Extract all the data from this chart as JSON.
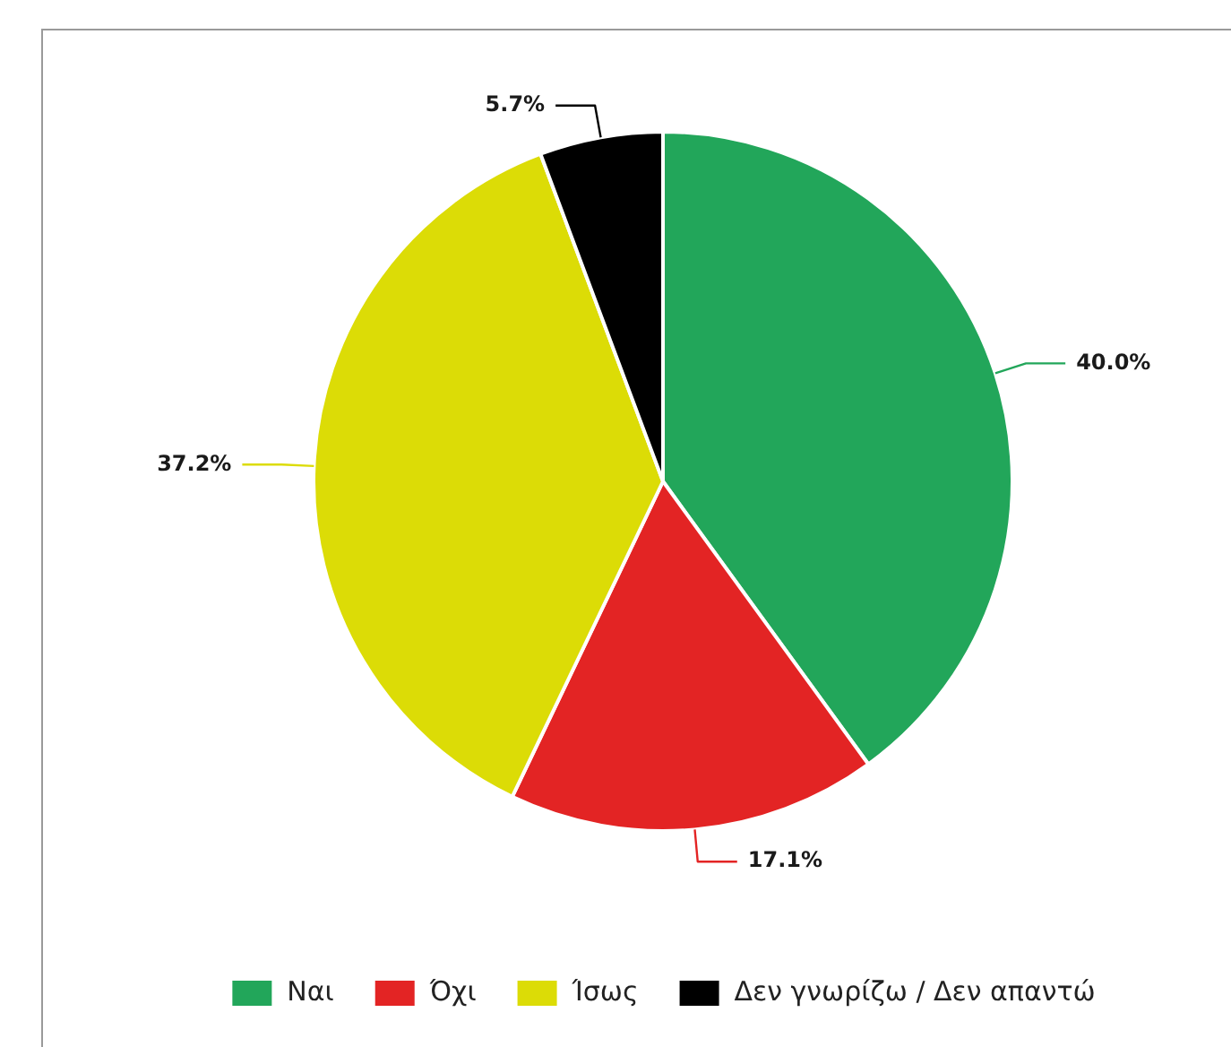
{
  "chart_data": {
    "type": "pie",
    "categories": [
      "Ναι",
      "Όχι",
      "Ίσως",
      "Δεν γνωρίζω / Δεν απαντώ"
    ],
    "values": [
      40.0,
      17.1,
      37.2,
      5.7
    ],
    "colors": [
      "#22a65a",
      "#e32424",
      "#dcdc06",
      "#000000"
    ],
    "value_labels": [
      "40.0%",
      "17.1%",
      "37.2%",
      "5.7%"
    ],
    "legend": "bottom"
  }
}
